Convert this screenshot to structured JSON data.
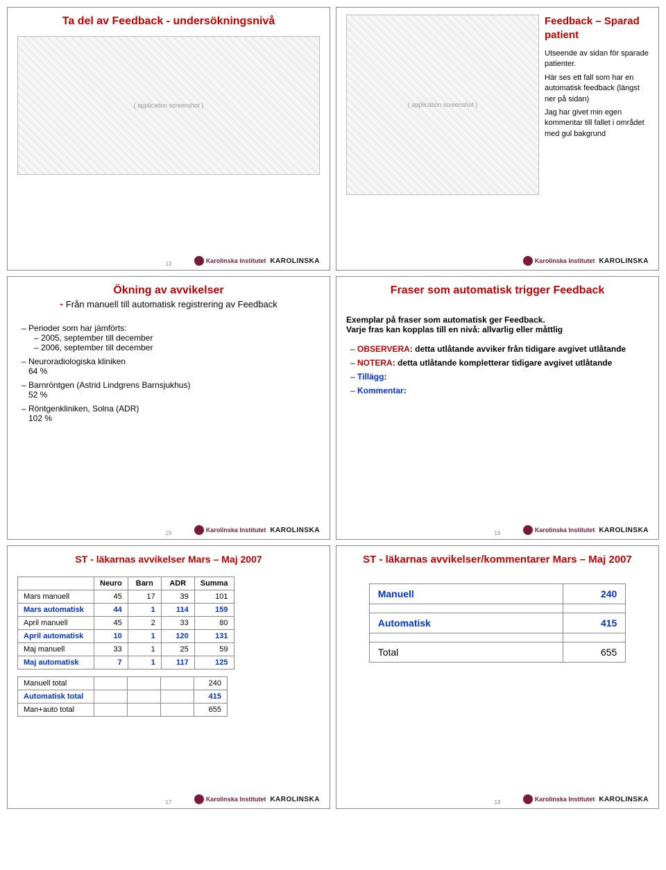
{
  "slides": {
    "s1": {
      "title": "Ta del av Feedback - undersökningsnivå",
      "pagenum": "13"
    },
    "s2": {
      "title": "Feedback – Sparad patient",
      "note1": "Utseende av sidan för sparade patienter.",
      "note2": "Här ses ett fall som har en automatisk feedback (längst ner på sidan)",
      "note3": "Jag har givet min egen kommentar till fallet i området med gul bakgrund",
      "pagenum": ""
    },
    "s3": {
      "title": "Ökning av avvikelser",
      "subline_prefix": "- ",
      "subline": "Från manuell till automatisk registrering av Feedback",
      "periods_label": "Perioder som har jämförts:",
      "period1": "2005, september till december",
      "period2": "2006, september till december",
      "items": [
        {
          "name": "Neuroradiologiska kliniken",
          "pct": "64 %"
        },
        {
          "name": "Barnröntgen (Astrid Lindgrens Barnsjukhus)",
          "pct": "52 %"
        },
        {
          "name": "Röntgenkliniken, Solna (ADR)",
          "pct": "102 %"
        }
      ],
      "pagenum": "15"
    },
    "s4": {
      "title": "Fraser som automatisk trigger Feedback",
      "intro1": "Exemplar på fraser som automatisk ger Feedback.",
      "intro2": "Varje fras kan kopplas till en nivå: allvarlig eller måttlig",
      "fr1_kw": "OBSERVERA",
      "fr1_rest": ": detta utlåtande avviker från tidigare avgivet utlåtande",
      "fr2_kw": "NOTERA",
      "fr2_rest": ": detta utlåtande kompletterar tidigare avgivet utlåtande",
      "fr3": "Tillägg",
      "fr4": "Kommentar",
      "pagenum": "16"
    },
    "s5": {
      "title": "ST - läkarnas avvikelser Mars – Maj 2007",
      "cols": [
        "",
        "Neuro",
        "Barn",
        "ADR",
        "Summa"
      ],
      "rows": [
        {
          "label": "Mars manuell",
          "cls": "",
          "v": [
            "45",
            "17",
            "39",
            "101"
          ]
        },
        {
          "label": "Mars automatisk",
          "cls": "blue",
          "v": [
            "44",
            "1",
            "114",
            "159"
          ]
        },
        {
          "label": "April manuell",
          "cls": "",
          "v": [
            "45",
            "2",
            "33",
            "80"
          ]
        },
        {
          "label": "April automatisk",
          "cls": "blue",
          "v": [
            "10",
            "1",
            "120",
            "131"
          ]
        },
        {
          "label": "Maj manuell",
          "cls": "",
          "v": [
            "33",
            "1",
            "25",
            "59"
          ]
        },
        {
          "label": "Maj automatisk",
          "cls": "blue",
          "v": [
            "7",
            "1",
            "117",
            "125"
          ]
        }
      ],
      "totals": [
        {
          "label": "Manuell total",
          "cls": "",
          "v": "240"
        },
        {
          "label": "Automatisk total",
          "cls": "blue",
          "v": "415"
        },
        {
          "label": "Man+auto total",
          "cls": "",
          "v": "655"
        }
      ],
      "pagenum": "17"
    },
    "s6": {
      "title": "ST - läkarnas avvikelser/kommentarer Mars – Maj 2007",
      "rows": [
        {
          "label": "Manuell",
          "cls": "blue",
          "v": "240"
        },
        {
          "label": "Automatisk",
          "cls": "blue",
          "v": "415"
        },
        {
          "label": "Total",
          "cls": "",
          "v": "655"
        }
      ],
      "pagenum": "18"
    }
  },
  "footer": {
    "ki": "Karolinska Institutet",
    "k": "KAROLINSKA"
  },
  "colors": {
    "title": "#c00000",
    "blue": "#0033cc"
  }
}
